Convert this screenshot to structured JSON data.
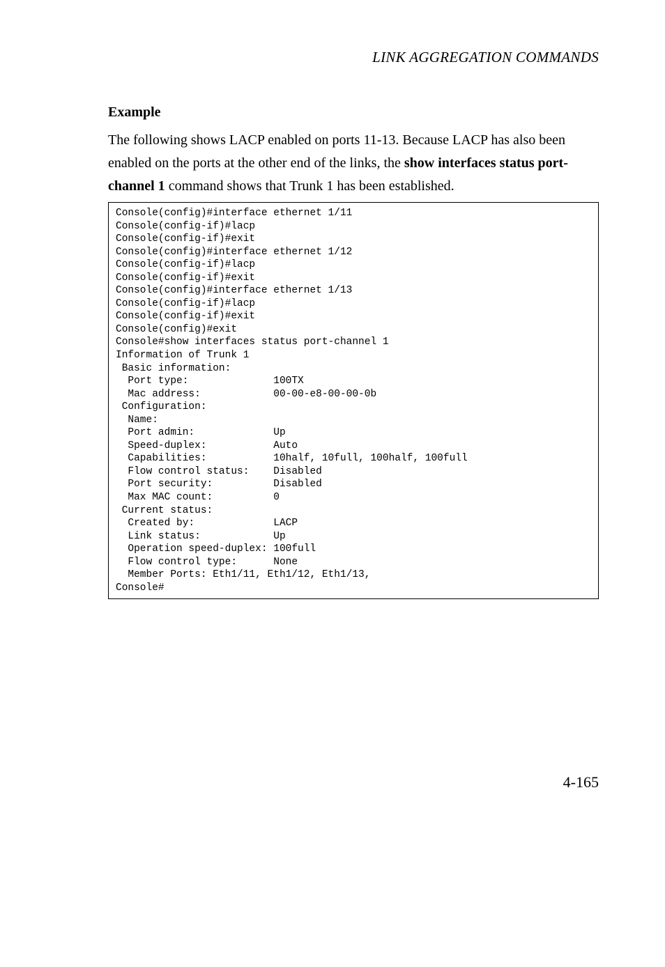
{
  "header": {
    "title": "LINK AGGREGATION COMMANDS"
  },
  "section": {
    "heading": "Example",
    "body_pre": "The following shows LACP enabled on ports 11-13. Because LACP has also been enabled on the ports at the other end of the links, the ",
    "body_bold": "show interfaces status port-channel 1",
    "body_post": " command shows that Trunk 1 has been established."
  },
  "code": {
    "lines": [
      "Console(config)#interface ethernet 1/11",
      "Console(config-if)#lacp",
      "Console(config-if)#exit",
      "Console(config)#interface ethernet 1/12",
      "Console(config-if)#lacp",
      "Console(config-if)#exit",
      "Console(config)#interface ethernet 1/13",
      "Console(config-if)#lacp",
      "Console(config-if)#exit",
      "Console(config)#exit",
      "Console#show interfaces status port-channel 1",
      "Information of Trunk 1",
      " Basic information:",
      "  Port type:              100TX",
      "  Mac address:            00-00-e8-00-00-0b",
      " Configuration:",
      "  Name:",
      "  Port admin:             Up",
      "  Speed-duplex:           Auto",
      "  Capabilities:           10half, 10full, 100half, 100full",
      "  Flow control status:    Disabled",
      "  Port security:          Disabled",
      "  Max MAC count:          0",
      " Current status:",
      "  Created by:             LACP",
      "  Link status:            Up",
      "  Operation speed-duplex: 100full",
      "  Flow control type:      None",
      "  Member Ports: Eth1/11, Eth1/12, Eth1/13,",
      "Console#"
    ]
  },
  "footer": {
    "page_number": "4-165"
  },
  "styling": {
    "background_color": "#ffffff",
    "text_color": "#000000",
    "code_border_color": "#000000",
    "body_font_family": "Georgia",
    "code_font_family": "Courier New",
    "header_font_size_pt": 16,
    "heading_font_size_pt": 15,
    "body_font_size_pt": 15,
    "code_font_size_pt": 11,
    "page_number_font_size_pt": 16
  }
}
